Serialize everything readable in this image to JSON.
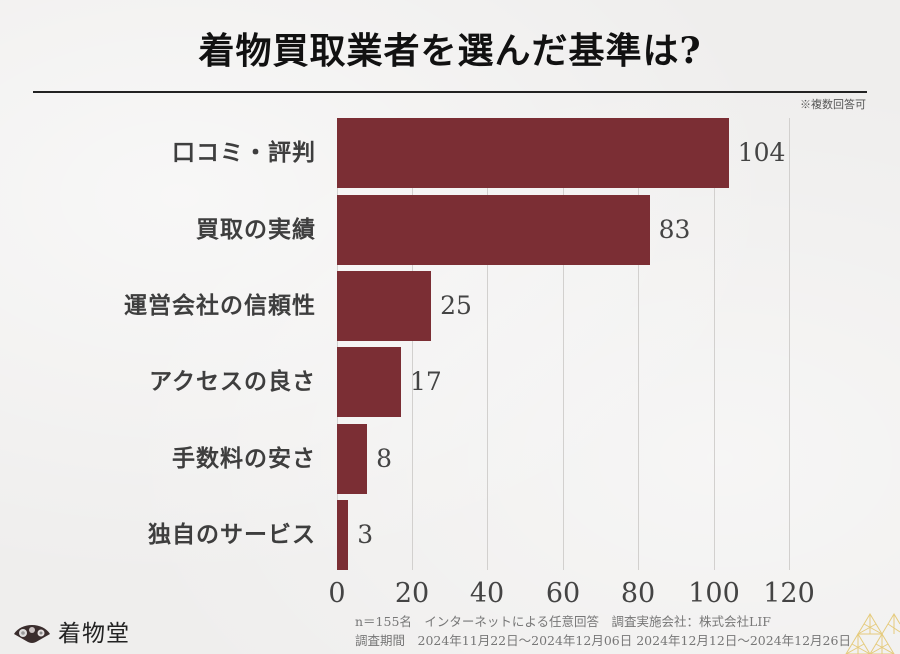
{
  "title": "着物買取業者を選んだ基準は?",
  "note": "※複数回答可",
  "chart_data": {
    "type": "bar",
    "orientation": "horizontal",
    "title": "着物買取業者を選んだ基準は?",
    "categories": [
      "口コミ・評判",
      "買取の実績",
      "運営会社の信頼性",
      "アクセスの良さ",
      "手数料の安さ",
      "独自のサービス"
    ],
    "values": [
      104,
      83,
      25,
      17,
      8,
      3
    ],
    "value_labels": [
      "104",
      "83",
      "25",
      "17",
      "8",
      "3"
    ],
    "xlabel": "",
    "ylabel": "",
    "xlim": [
      0,
      120
    ],
    "x_ticks": [
      "0",
      "20",
      "40",
      "60",
      "80",
      "100",
      "120"
    ],
    "grid": true,
    "legend": "none",
    "bar_color": "#7b2e34",
    "annotation": "※複数回答可"
  },
  "footer": {
    "line1": "n＝155名　インターネットによる任意回答　調査実施会社：株式会社LIF",
    "line2": "調査期間　2024年11月22日～2024年12月06日 2024年12月12日～2024年12月26日"
  },
  "logo": {
    "text": "着物堂",
    "icon": "folding-fan-icon"
  },
  "colors": {
    "bar": "#7b2e34",
    "background": "#efeeed",
    "decoration_gold": "#e3c56a"
  }
}
